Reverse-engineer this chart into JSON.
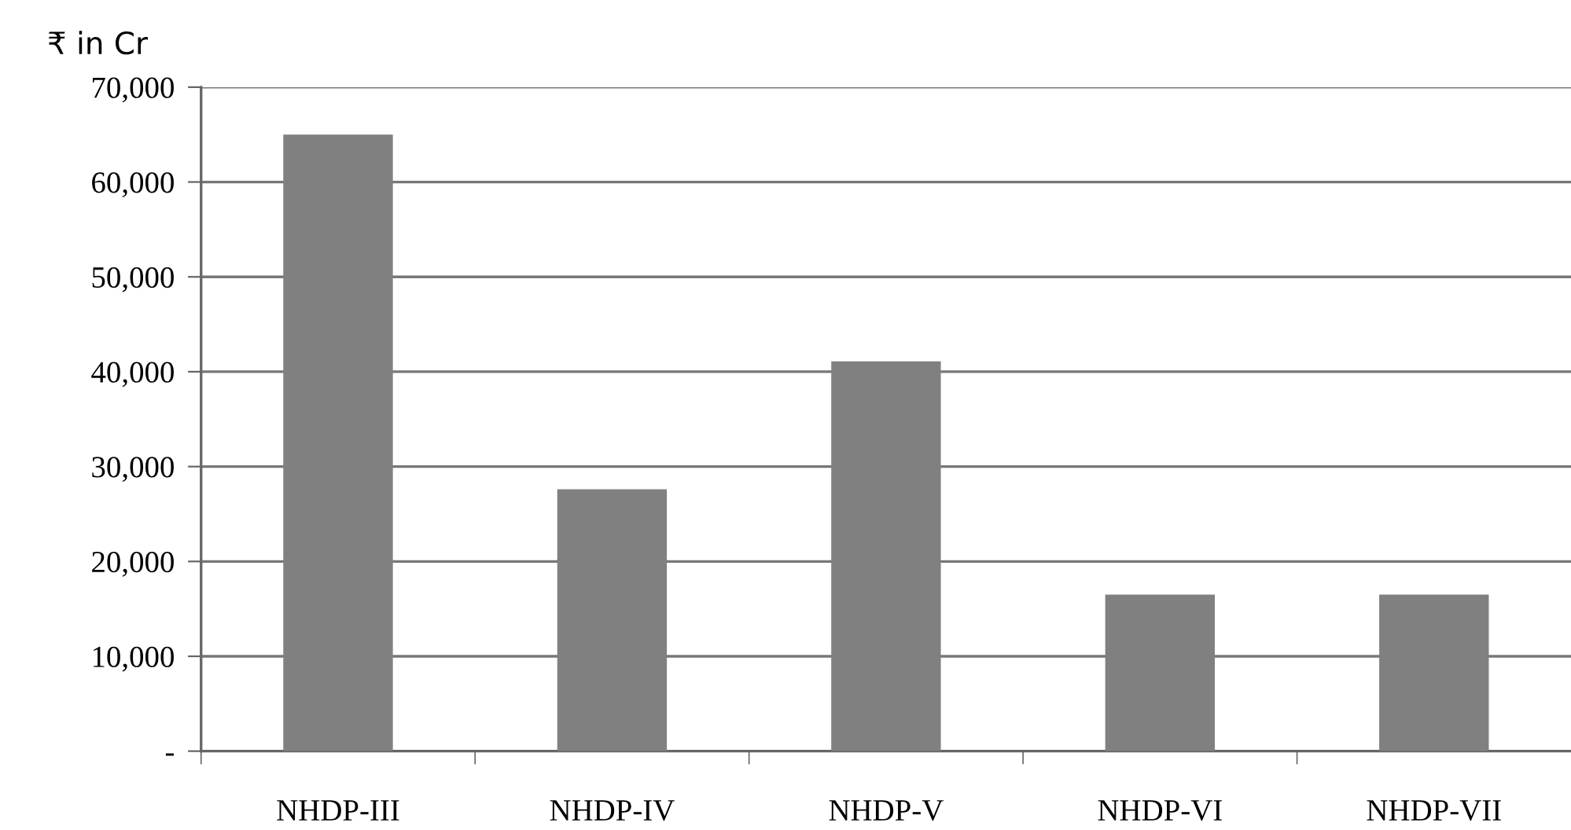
{
  "chart_data": {
    "type": "bar",
    "ylabel": "₹ in Cr",
    "categories": [
      "NHDP-III",
      "NHDP-IV",
      "NHDP-V",
      "NHDP-VI",
      "NHDP-VII"
    ],
    "values": [
      65000,
      27600,
      41100,
      16500,
      16500
    ],
    "color": "#808080",
    "ylim": [
      0,
      70000
    ],
    "yticks": [
      {
        "value": 0,
        "label": "-"
      },
      {
        "value": 10000,
        "label": "10,000"
      },
      {
        "value": 20000,
        "label": "20,000"
      },
      {
        "value": 30000,
        "label": "30,000"
      },
      {
        "value": 40000,
        "label": "40,000"
      },
      {
        "value": 50000,
        "label": "50,000"
      },
      {
        "value": 60000,
        "label": "60,000"
      },
      {
        "value": 70000,
        "label": "70,000"
      }
    ],
    "grid": "y",
    "legend": false
  }
}
